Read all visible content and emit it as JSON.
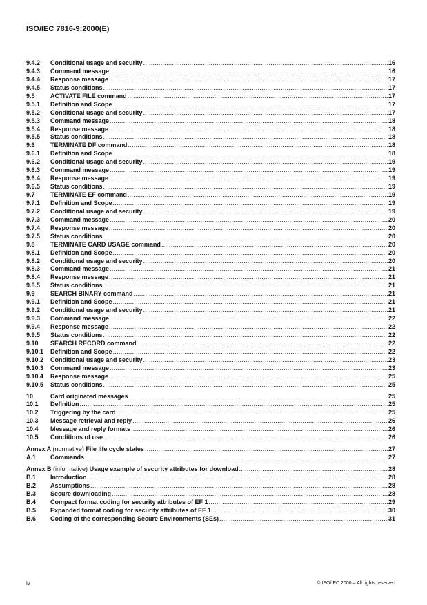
{
  "header": {
    "title": "ISO/IEC 7816-9:2000(E)"
  },
  "toc": [
    {
      "entries": [
        {
          "num": "9.4.2",
          "title": "Conditional usage and security",
          "page": "16"
        },
        {
          "num": "9.4.3",
          "title": "Command message",
          "page": "16"
        },
        {
          "num": "9.4.4",
          "title": "Response message",
          "page": "17"
        },
        {
          "num": "9.4.5",
          "title": "Status conditions",
          "page": "17"
        },
        {
          "num": "9.5",
          "title": "ACTIVATE FILE command",
          "page": "17"
        },
        {
          "num": "9.5.1",
          "title": "Definition and Scope",
          "page": "17"
        },
        {
          "num": "9.5.2",
          "title": "Conditional usage and security",
          "page": "17"
        },
        {
          "num": "9.5.3",
          "title": "Command message",
          "page": "18"
        },
        {
          "num": "9.5.4",
          "title": "Response message",
          "page": "18"
        },
        {
          "num": "9.5.5",
          "title": "Status conditions",
          "page": "18"
        },
        {
          "num": "9.6",
          "title": "TERMINATE DF command",
          "page": "18"
        },
        {
          "num": "9.6.1",
          "title": "Definition and Scope",
          "page": "18"
        },
        {
          "num": "9.6.2",
          "title": "Conditional usage and security",
          "page": "19"
        },
        {
          "num": "9.6.3",
          "title": "Command message",
          "page": "19"
        },
        {
          "num": "9.6.4",
          "title": "Response message",
          "page": "19"
        },
        {
          "num": "9.6.5",
          "title": "Status conditions",
          "page": "19"
        },
        {
          "num": "9.7",
          "title": "TERMINATE EF command",
          "page": "19"
        },
        {
          "num": "9.7.1",
          "title": "Definition and Scope",
          "page": "19"
        },
        {
          "num": "9.7.2",
          "title": "Conditional usage and security",
          "page": "19"
        },
        {
          "num": "9.7.3",
          "title": "Command message",
          "page": "20"
        },
        {
          "num": "9.7.4",
          "title": "Response message",
          "page": "20"
        },
        {
          "num": "9.7.5",
          "title": "Status conditions",
          "page": "20"
        },
        {
          "num": "9.8",
          "title": "TERMINATE CARD USAGE command",
          "page": "20"
        },
        {
          "num": "9.8.1",
          "title": "Definition and Scope",
          "page": "20"
        },
        {
          "num": "9.8.2",
          "title": "Conditional usage and security",
          "page": "20"
        },
        {
          "num": "9.8.3",
          "title": "Command message",
          "page": "21"
        },
        {
          "num": "9.8.4",
          "title": "Response message",
          "page": "21"
        },
        {
          "num": "9.8.5",
          "title": "Status conditions",
          "page": "21"
        },
        {
          "num": "9.9",
          "title": "SEARCH BINARY command",
          "page": "21"
        },
        {
          "num": "9.9.1",
          "title": "Definition and Scope",
          "page": "21"
        },
        {
          "num": "9.9.2",
          "title": "Conditional usage and security",
          "page": "21"
        },
        {
          "num": "9.9.3",
          "title": "Command message",
          "page": "22"
        },
        {
          "num": "9.9.4",
          "title": "Response message",
          "page": "22"
        },
        {
          "num": "9.9.5",
          "title": "Status conditions",
          "page": "22"
        },
        {
          "num": "9.10",
          "title": "SEARCH RECORD command",
          "page": "22"
        },
        {
          "num": "9.10.1",
          "title": "Definition and Scope",
          "page": "22"
        },
        {
          "num": "9.10.2",
          "title": "Conditional usage and security",
          "page": "23"
        },
        {
          "num": "9.10.3",
          "title": "Command message",
          "page": "23"
        },
        {
          "num": "9.10.4",
          "title": "Response message",
          "page": "25"
        },
        {
          "num": "9.10.5",
          "title": "Status conditions",
          "page": "25"
        }
      ]
    },
    {
      "entries": [
        {
          "num": "10",
          "title": "Card originated messages",
          "page": "25"
        },
        {
          "num": "10.1",
          "title": "Definition",
          "page": "25"
        },
        {
          "num": "10.2",
          "title": "Triggering by the card",
          "page": "25"
        },
        {
          "num": "10.3",
          "title": "Message retrieval and reply",
          "page": "26"
        },
        {
          "num": "10.4",
          "title": "Message and reply formats",
          "page": "26"
        },
        {
          "num": "10.5",
          "title": "Conditions of use",
          "page": "26"
        }
      ]
    },
    {
      "entries": [
        {
          "annex": "Annex A",
          "note": "(normative)",
          "title": "File life cycle states",
          "page": "27"
        },
        {
          "num": "A.1",
          "title": "Commands",
          "page": "27"
        }
      ]
    },
    {
      "entries": [
        {
          "annex": "Annex B",
          "note": "(informative)",
          "title": "Usage example of security attributes for download",
          "page": "28"
        },
        {
          "num": "B.1",
          "title": "Introduction",
          "page": "28"
        },
        {
          "num": "B.2",
          "title": "Assumptions",
          "page": "28"
        },
        {
          "num": "B.3",
          "title": "Secure downloading",
          "page": "28"
        },
        {
          "num": "B.4",
          "title": "Compact format coding for security attributes of EF 1",
          "page": "29"
        },
        {
          "num": "B.5",
          "title": "Expanded format coding for security attributes of EF 1",
          "page": "30"
        },
        {
          "num": "B.6",
          "title": "Coding of the corresponding Secure Environments (SEs)",
          "page": "31"
        }
      ]
    }
  ],
  "footer": {
    "page_label": "iv",
    "copyright": "© ISO/IEC 2000 – All rights reserved"
  }
}
